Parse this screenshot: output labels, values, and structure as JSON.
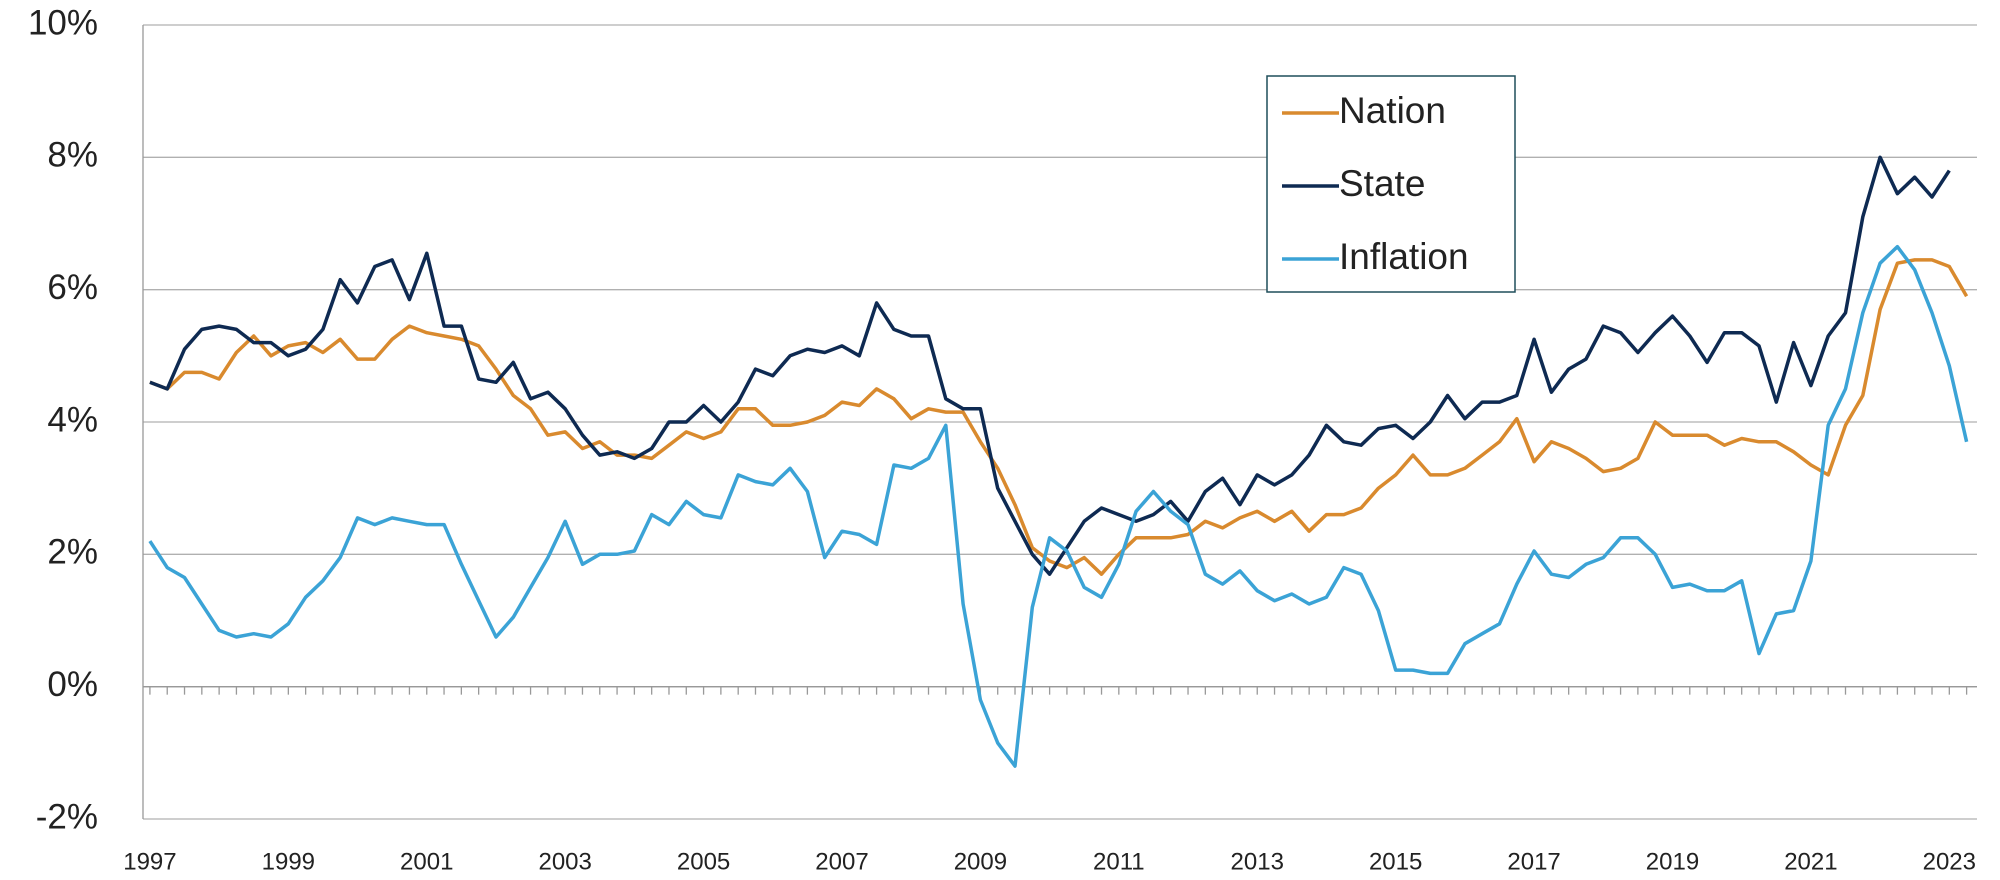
{
  "chart_data": {
    "type": "line",
    "x": [
      1997,
      1997.25,
      1997.5,
      1997.75,
      1998,
      1998.25,
      1998.5,
      1998.75,
      1999,
      1999.25,
      1999.5,
      1999.75,
      2000,
      2000.25,
      2000.5,
      2000.75,
      2001,
      2001.25,
      2001.5,
      2001.75,
      2002,
      2002.25,
      2002.5,
      2002.75,
      2003,
      2003.25,
      2003.5,
      2003.75,
      2004,
      2004.25,
      2004.5,
      2004.75,
      2005,
      2005.25,
      2005.5,
      2005.75,
      2006,
      2006.25,
      2006.5,
      2006.75,
      2007,
      2007.25,
      2007.5,
      2007.75,
      2008,
      2008.25,
      2008.5,
      2008.75,
      2009,
      2009.25,
      2009.5,
      2009.75,
      2010,
      2010.25,
      2010.5,
      2010.75,
      2011,
      2011.25,
      2011.5,
      2011.75,
      2012,
      2012.25,
      2012.5,
      2012.75,
      2013,
      2013.25,
      2013.5,
      2013.75,
      2014,
      2014.25,
      2014.5,
      2014.75,
      2015,
      2015.25,
      2015.5,
      2015.75,
      2016,
      2016.25,
      2016.5,
      2016.75,
      2017,
      2017.25,
      2017.5,
      2017.75,
      2018,
      2018.25,
      2018.5,
      2018.75,
      2019,
      2019.25,
      2019.5,
      2019.75,
      2020,
      2020.25,
      2020.5,
      2020.75,
      2021,
      2021.25,
      2021.5,
      2021.75,
      2022,
      2022.25,
      2022.5,
      2022.75,
      2023,
      2023.25
    ],
    "series": [
      {
        "name": "Nation",
        "color": "#d98a2e",
        "values": [
          4.6,
          4.5,
          4.75,
          4.75,
          4.65,
          5.05,
          5.3,
          5.0,
          5.15,
          5.2,
          5.05,
          5.25,
          4.95,
          4.95,
          5.25,
          5.45,
          5.35,
          5.3,
          5.25,
          5.15,
          4.8,
          4.4,
          4.2,
          3.8,
          3.85,
          3.6,
          3.7,
          3.5,
          3.5,
          3.45,
          3.65,
          3.85,
          3.75,
          3.85,
          4.2,
          4.2,
          3.95,
          3.95,
          4.0,
          4.1,
          4.3,
          4.25,
          4.5,
          4.35,
          4.05,
          4.2,
          4.15,
          4.15,
          3.7,
          3.3,
          2.75,
          2.1,
          1.9,
          1.8,
          1.95,
          1.7,
          2.0,
          2.25,
          2.25,
          2.25,
          2.3,
          2.5,
          2.4,
          2.55,
          2.65,
          2.5,
          2.65,
          2.35,
          2.6,
          2.6,
          2.7,
          3.0,
          3.2,
          3.5,
          3.2,
          3.2,
          3.3,
          3.5,
          3.7,
          4.05,
          3.4,
          3.7,
          3.6,
          3.45,
          3.25,
          3.3,
          3.45,
          4.0,
          3.8,
          3.8,
          3.8,
          3.65,
          3.75,
          3.7,
          3.7,
          3.55,
          3.35,
          3.2,
          3.95,
          4.4,
          5.7,
          6.4,
          6.45,
          6.45,
          6.35,
          5.9
        ]
      },
      {
        "name": "State",
        "color": "#0e2a52",
        "values": [
          4.6,
          4.5,
          5.1,
          5.4,
          5.45,
          5.4,
          5.2,
          5.2,
          5.0,
          5.1,
          5.4,
          6.15,
          5.8,
          6.35,
          6.45,
          5.85,
          6.55,
          5.45,
          5.45,
          4.65,
          4.6,
          4.9,
          4.35,
          4.45,
          4.2,
          3.8,
          3.5,
          3.55,
          3.45,
          3.6,
          4.0,
          4.0,
          4.25,
          4.0,
          4.3,
          4.8,
          4.7,
          5.0,
          5.1,
          5.05,
          5.15,
          5.0,
          5.8,
          5.4,
          5.3,
          5.3,
          4.35,
          4.2,
          4.2,
          3.0,
          2.5,
          2.0,
          1.7,
          2.1,
          2.5,
          2.7,
          2.6,
          2.5,
          2.6,
          2.8,
          2.5,
          2.95,
          3.15,
          2.75,
          3.2,
          3.05,
          3.2,
          3.5,
          3.95,
          3.7,
          3.65,
          3.9,
          3.95,
          3.75,
          4.0,
          4.4,
          4.05,
          4.3,
          4.3,
          4.4,
          5.25,
          4.45,
          4.8,
          4.95,
          5.45,
          5.35,
          5.05,
          5.35,
          5.6,
          5.3,
          4.9,
          5.35,
          5.35,
          5.15,
          4.3,
          5.2,
          4.55,
          5.3,
          5.65,
          7.1,
          8.0,
          7.45,
          7.7,
          7.4,
          7.8,
          null
        ]
      },
      {
        "name": "Inflation",
        "color": "#3ba3d6",
        "values": [
          2.2,
          1.8,
          1.65,
          1.25,
          0.85,
          0.75,
          0.8,
          0.75,
          0.95,
          1.35,
          1.6,
          1.95,
          2.55,
          2.45,
          2.55,
          2.5,
          2.45,
          2.45,
          1.85,
          1.3,
          0.75,
          1.05,
          1.5,
          1.95,
          2.5,
          1.85,
          2.0,
          2.0,
          2.05,
          2.6,
          2.45,
          2.8,
          2.6,
          2.55,
          3.2,
          3.1,
          3.05,
          3.3,
          2.95,
          1.95,
          2.35,
          2.3,
          2.15,
          3.35,
          3.3,
          3.45,
          3.95,
          1.25,
          -0.2,
          -0.85,
          -1.2,
          1.2,
          2.25,
          2.05,
          1.5,
          1.35,
          1.85,
          2.65,
          2.95,
          2.65,
          2.45,
          1.7,
          1.55,
          1.75,
          1.45,
          1.3,
          1.4,
          1.25,
          1.35,
          1.8,
          1.7,
          1.15,
          0.25,
          0.25,
          0.2,
          0.2,
          0.65,
          0.8,
          0.95,
          1.55,
          2.05,
          1.7,
          1.65,
          1.85,
          1.95,
          2.25,
          2.25,
          2.0,
          1.5,
          1.55,
          1.45,
          1.45,
          1.6,
          0.5,
          1.1,
          1.15,
          1.9,
          3.95,
          4.5,
          5.65,
          6.4,
          6.65,
          6.3,
          5.65,
          4.85,
          3.7
        ]
      }
    ],
    "xlim": [
      1996.9,
      2023.4
    ],
    "xticks": [
      1997,
      1999,
      2001,
      2003,
      2005,
      2007,
      2009,
      2011,
      2013,
      2015,
      2017,
      2019,
      2021,
      2023
    ],
    "ylim": [
      -2,
      10
    ],
    "yticks": [
      {
        "value": -2,
        "label": "-2%"
      },
      {
        "value": 0,
        "label": "0%"
      },
      {
        "value": 2,
        "label": "2%"
      },
      {
        "value": 4,
        "label": "4%"
      },
      {
        "value": 6,
        "label": "6%"
      },
      {
        "value": 8,
        "label": "8%"
      },
      {
        "value": 10,
        "label": "10%"
      }
    ],
    "grid": true,
    "legend": "top-right"
  }
}
